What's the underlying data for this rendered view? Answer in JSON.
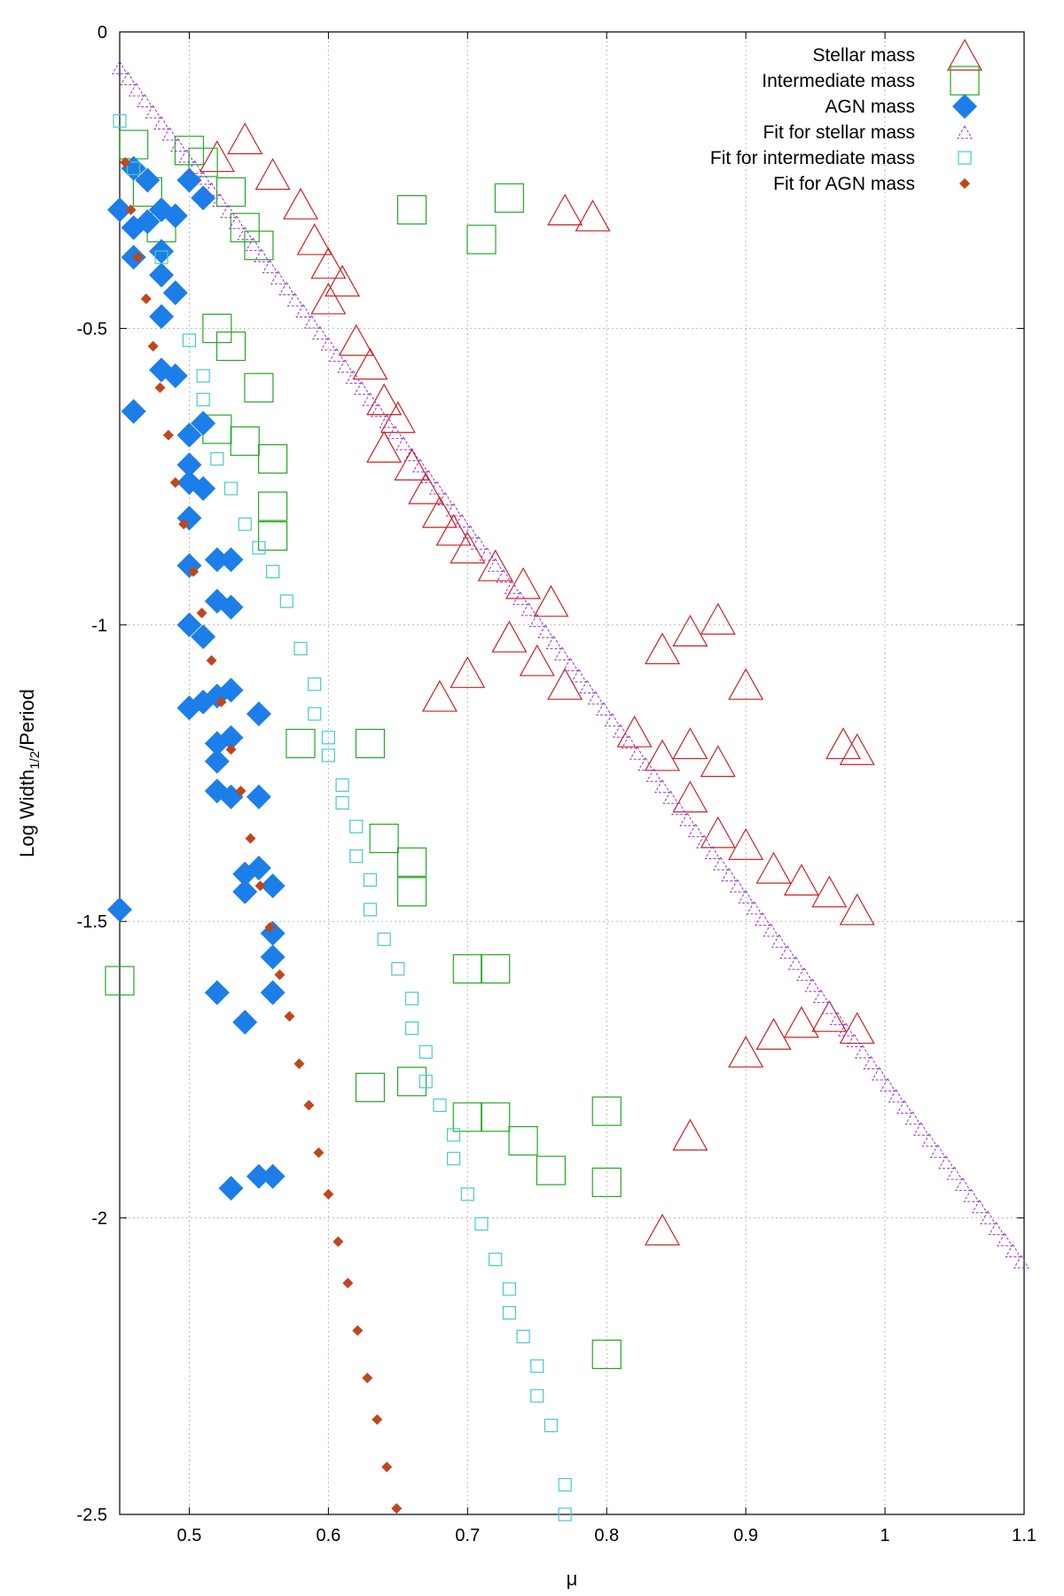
{
  "chart_data": {
    "type": "scatter",
    "title": "",
    "xlabel": "μ",
    "ylabel_main": "Log Width",
    "ylabel_sub": "1/2",
    "ylabel_tail": "/Period",
    "xlim": [
      0.45,
      1.1
    ],
    "ylim": [
      -2.5,
      0
    ],
    "xticks": [
      0.5,
      0.6,
      0.7,
      0.8,
      0.9,
      1,
      1.1
    ],
    "yticks": [
      0,
      -0.5,
      -1,
      -1.5,
      -2,
      -2.5
    ],
    "xtick_labels": [
      "0.5",
      "0.6",
      "0.7",
      "0.8",
      "0.9",
      "1",
      "1.1"
    ],
    "ytick_labels": [
      "0",
      "-0.5",
      "-1",
      "-1.5",
      "-2",
      "-2.5"
    ],
    "grid": true,
    "legend_position": "top-right",
    "series": [
      {
        "name": "Stellar mass",
        "marker": "triangle",
        "color": "#cc2222",
        "points": [
          [
            0.52,
            -0.21
          ],
          [
            0.54,
            -0.18
          ],
          [
            0.56,
            -0.24
          ],
          [
            0.58,
            -0.29
          ],
          [
            0.59,
            -0.35
          ],
          [
            0.6,
            -0.39
          ],
          [
            0.61,
            -0.42
          ],
          [
            0.6,
            -0.45
          ],
          [
            0.62,
            -0.52
          ],
          [
            0.63,
            -0.56
          ],
          [
            0.64,
            -0.62
          ],
          [
            0.65,
            -0.65
          ],
          [
            0.64,
            -0.7
          ],
          [
            0.66,
            -0.73
          ],
          [
            0.67,
            -0.77
          ],
          [
            0.68,
            -0.81
          ],
          [
            0.69,
            -0.84
          ],
          [
            0.7,
            -0.87
          ],
          [
            0.72,
            -0.9
          ],
          [
            0.74,
            -0.93
          ],
          [
            0.76,
            -0.96
          ],
          [
            0.73,
            -1.02
          ],
          [
            0.75,
            -1.06
          ],
          [
            0.77,
            -1.1
          ],
          [
            0.77,
            -0.3
          ],
          [
            0.79,
            -0.31
          ],
          [
            0.68,
            -1.12
          ],
          [
            0.7,
            -1.08
          ],
          [
            0.84,
            -1.04
          ],
          [
            0.86,
            -1.01
          ],
          [
            0.88,
            -0.99
          ],
          [
            0.9,
            -1.1
          ],
          [
            0.82,
            -1.18
          ],
          [
            0.84,
            -1.22
          ],
          [
            0.86,
            -1.2
          ],
          [
            0.88,
            -1.23
          ],
          [
            0.86,
            -1.29
          ],
          [
            0.88,
            -1.35
          ],
          [
            0.9,
            -1.37
          ],
          [
            0.92,
            -1.41
          ],
          [
            0.94,
            -1.43
          ],
          [
            0.96,
            -1.45
          ],
          [
            0.98,
            -1.48
          ],
          [
            0.97,
            -1.2
          ],
          [
            0.98,
            -1.21
          ],
          [
            0.9,
            -1.72
          ],
          [
            0.92,
            -1.69
          ],
          [
            0.94,
            -1.67
          ],
          [
            0.96,
            -1.66
          ],
          [
            0.98,
            -1.68
          ],
          [
            0.86,
            -1.86
          ],
          [
            0.84,
            -2.02
          ]
        ]
      },
      {
        "name": "Intermediate mass",
        "marker": "square",
        "color": "#22aa22",
        "points": [
          [
            0.46,
            -0.19
          ],
          [
            0.47,
            -0.27
          ],
          [
            0.48,
            -0.33
          ],
          [
            0.5,
            -0.2
          ],
          [
            0.51,
            -0.22
          ],
          [
            0.53,
            -0.27
          ],
          [
            0.54,
            -0.33
          ],
          [
            0.55,
            -0.36
          ],
          [
            0.52,
            -0.5
          ],
          [
            0.53,
            -0.53
          ],
          [
            0.55,
            -0.6
          ],
          [
            0.52,
            -0.67
          ],
          [
            0.54,
            -0.69
          ],
          [
            0.56,
            -0.72
          ],
          [
            0.56,
            -0.8
          ],
          [
            0.56,
            -0.85
          ],
          [
            0.66,
            -0.3
          ],
          [
            0.58,
            -1.2
          ],
          [
            0.63,
            -1.2
          ],
          [
            0.64,
            -1.36
          ],
          [
            0.66,
            -1.45
          ],
          [
            0.66,
            -1.4
          ],
          [
            0.7,
            -1.58
          ],
          [
            0.72,
            -1.58
          ],
          [
            0.66,
            -1.77
          ],
          [
            0.63,
            -1.78
          ],
          [
            0.7,
            -1.83
          ],
          [
            0.72,
            -1.83
          ],
          [
            0.74,
            -1.87
          ],
          [
            0.76,
            -1.92
          ],
          [
            0.8,
            -1.94
          ],
          [
            0.8,
            -1.82
          ],
          [
            0.8,
            -2.23
          ],
          [
            0.45,
            -1.6
          ],
          [
            0.71,
            -0.35
          ],
          [
            0.73,
            -0.28
          ]
        ]
      },
      {
        "name": "AGN mass",
        "marker": "diamond",
        "color": "#1c7ee8",
        "points": [
          [
            0.45,
            -0.3
          ],
          [
            0.46,
            -0.23
          ],
          [
            0.47,
            -0.25
          ],
          [
            0.46,
            -0.33
          ],
          [
            0.47,
            -0.32
          ],
          [
            0.48,
            -0.3
          ],
          [
            0.49,
            -0.31
          ],
          [
            0.46,
            -0.38
          ],
          [
            0.48,
            -0.37
          ],
          [
            0.48,
            -0.41
          ],
          [
            0.49,
            -0.44
          ],
          [
            0.48,
            -0.48
          ],
          [
            0.5,
            -0.25
          ],
          [
            0.51,
            -0.28
          ],
          [
            0.48,
            -0.57
          ],
          [
            0.49,
            -0.58
          ],
          [
            0.46,
            -0.64
          ],
          [
            0.5,
            -0.68
          ],
          [
            0.51,
            -0.66
          ],
          [
            0.5,
            -0.73
          ],
          [
            0.5,
            -0.76
          ],
          [
            0.51,
            -0.77
          ],
          [
            0.5,
            -0.82
          ],
          [
            0.5,
            -0.9
          ],
          [
            0.52,
            -0.89
          ],
          [
            0.53,
            -0.89
          ],
          [
            0.52,
            -0.96
          ],
          [
            0.53,
            -0.97
          ],
          [
            0.5,
            -1.0
          ],
          [
            0.51,
            -1.02
          ],
          [
            0.5,
            -1.14
          ],
          [
            0.51,
            -1.13
          ],
          [
            0.52,
            -1.12
          ],
          [
            0.53,
            -1.11
          ],
          [
            0.52,
            -1.2
          ],
          [
            0.52,
            -1.23
          ],
          [
            0.53,
            -1.19
          ],
          [
            0.55,
            -1.15
          ],
          [
            0.52,
            -1.28
          ],
          [
            0.53,
            -1.29
          ],
          [
            0.55,
            -1.29
          ],
          [
            0.54,
            -1.42
          ],
          [
            0.55,
            -1.41
          ],
          [
            0.54,
            -1.45
          ],
          [
            0.56,
            -1.44
          ],
          [
            0.56,
            -1.52
          ],
          [
            0.56,
            -1.56
          ],
          [
            0.56,
            -1.62
          ],
          [
            0.52,
            -1.62
          ],
          [
            0.54,
            -1.67
          ],
          [
            0.45,
            -1.48
          ],
          [
            0.53,
            -1.95
          ],
          [
            0.55,
            -1.93
          ],
          [
            0.56,
            -1.93
          ]
        ]
      },
      {
        "name": "Fit for stellar mass",
        "marker": "small-triangle",
        "color": "#9933cc",
        "line": {
          "x0": 0.45,
          "y0": -0.06,
          "x1": 1.1,
          "y1": -2.08,
          "step": 0.006
        }
      },
      {
        "name": "Fit for intermediate mass",
        "marker": "small-square",
        "color": "#44cccc",
        "points": [
          [
            0.45,
            -0.15
          ],
          [
            0.46,
            -0.23
          ],
          [
            0.48,
            -0.38
          ],
          [
            0.5,
            -0.52
          ],
          [
            0.51,
            -0.58
          ],
          [
            0.51,
            -0.62
          ],
          [
            0.52,
            -0.72
          ],
          [
            0.53,
            -0.77
          ],
          [
            0.54,
            -0.83
          ],
          [
            0.55,
            -0.87
          ],
          [
            0.56,
            -0.91
          ],
          [
            0.57,
            -0.96
          ],
          [
            0.58,
            -1.04
          ],
          [
            0.59,
            -1.1
          ],
          [
            0.59,
            -1.15
          ],
          [
            0.6,
            -1.19
          ],
          [
            0.6,
            -1.22
          ],
          [
            0.61,
            -1.27
          ],
          [
            0.61,
            -1.3
          ],
          [
            0.62,
            -1.34
          ],
          [
            0.62,
            -1.39
          ],
          [
            0.63,
            -1.43
          ],
          [
            0.63,
            -1.48
          ],
          [
            0.64,
            -1.53
          ],
          [
            0.65,
            -1.58
          ],
          [
            0.66,
            -1.63
          ],
          [
            0.66,
            -1.68
          ],
          [
            0.67,
            -1.72
          ],
          [
            0.67,
            -1.77
          ],
          [
            0.68,
            -1.81
          ],
          [
            0.69,
            -1.86
          ],
          [
            0.69,
            -1.9
          ],
          [
            0.7,
            -1.96
          ],
          [
            0.71,
            -2.01
          ],
          [
            0.72,
            -2.07
          ],
          [
            0.73,
            -2.12
          ],
          [
            0.73,
            -2.16
          ],
          [
            0.74,
            -2.2
          ],
          [
            0.75,
            -2.25
          ],
          [
            0.75,
            -2.3
          ],
          [
            0.76,
            -2.35
          ],
          [
            0.77,
            -2.45
          ],
          [
            0.77,
            -2.5
          ]
        ]
      },
      {
        "name": "Fit for AGN mass",
        "marker": "small-diamond",
        "color": "#c0461c",
        "points": [
          [
            0.454,
            -0.22
          ],
          [
            0.458,
            -0.3
          ],
          [
            0.463,
            -0.38
          ],
          [
            0.469,
            -0.45
          ],
          [
            0.474,
            -0.53
          ],
          [
            0.479,
            -0.6
          ],
          [
            0.485,
            -0.68
          ],
          [
            0.49,
            -0.76
          ],
          [
            0.496,
            -0.83
          ],
          [
            0.503,
            -0.91
          ],
          [
            0.509,
            -0.98
          ],
          [
            0.516,
            -1.06
          ],
          [
            0.523,
            -1.13
          ],
          [
            0.53,
            -1.21
          ],
          [
            0.537,
            -1.28
          ],
          [
            0.544,
            -1.36
          ],
          [
            0.551,
            -1.44
          ],
          [
            0.558,
            -1.51
          ],
          [
            0.565,
            -1.59
          ],
          [
            0.572,
            -1.66
          ],
          [
            0.579,
            -1.74
          ],
          [
            0.586,
            -1.81
          ],
          [
            0.593,
            -1.89
          ],
          [
            0.6,
            -1.96
          ],
          [
            0.607,
            -2.04
          ],
          [
            0.614,
            -2.11
          ],
          [
            0.621,
            -2.19
          ],
          [
            0.628,
            -2.27
          ],
          [
            0.635,
            -2.34
          ],
          [
            0.642,
            -2.42
          ],
          [
            0.649,
            -2.49
          ]
        ]
      }
    ]
  },
  "legend": {
    "items": [
      {
        "label": "Stellar mass"
      },
      {
        "label": "Intermediate mass"
      },
      {
        "label": "AGN mass"
      },
      {
        "label": "Fit for stellar mass"
      },
      {
        "label": "Fit for intermediate mass"
      },
      {
        "label": "Fit for AGN mass"
      }
    ]
  }
}
